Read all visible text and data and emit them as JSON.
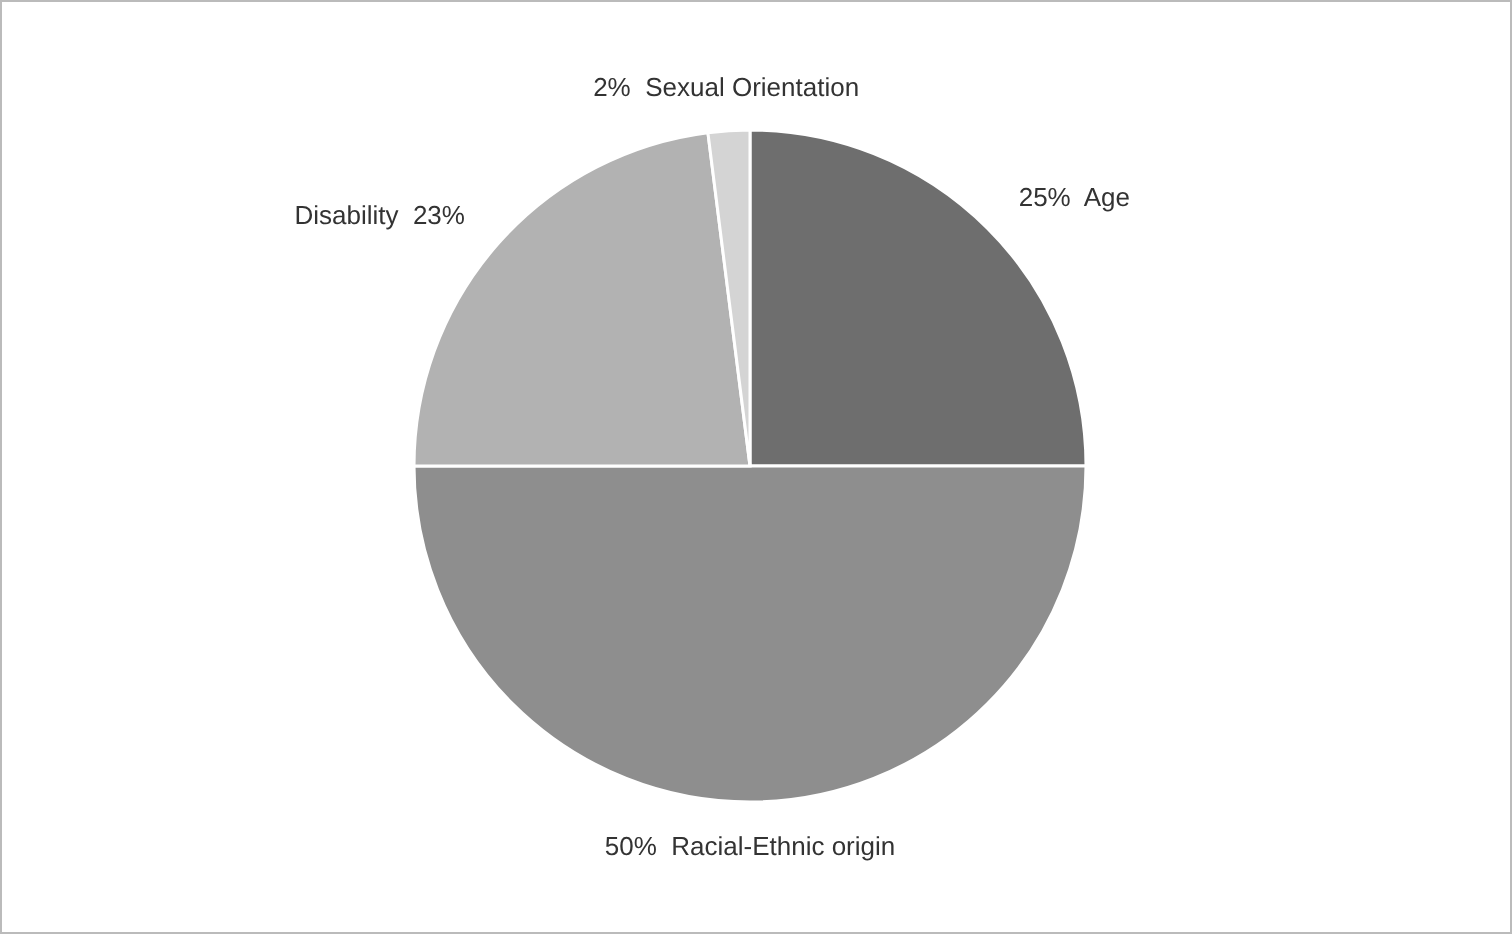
{
  "chart_data": {
    "type": "pie",
    "categories": [
      "Age",
      "Racial-Ethnic origin",
      "Disability",
      "Sexual Orientation"
    ],
    "values": [
      25,
      50,
      23,
      2
    ],
    "colors": [
      "#6e6e6e",
      "#8e8e8e",
      "#b2b2b2",
      "#d4d4d4"
    ],
    "value_labels": [
      "25%",
      "50%",
      "23%",
      "2%"
    ]
  }
}
